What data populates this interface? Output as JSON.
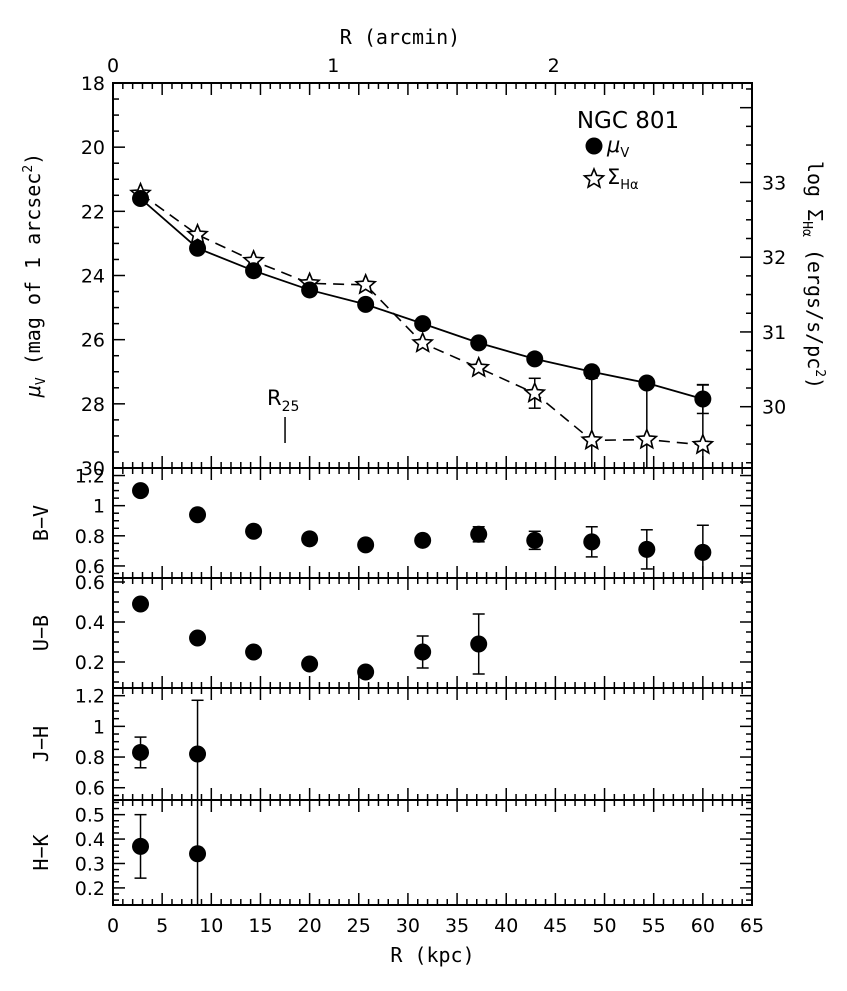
{
  "chart_data": [
    {
      "panel": "mu_v",
      "type": "line",
      "title": "NGC 801",
      "xlabel": "R (kpc)",
      "ylabel": "μ_V (mag of 1 arcsec²)",
      "top_xlabel": "R (arcmin)",
      "top_xlim": [
        0,
        2.9
      ],
      "top_xticks": [
        "0",
        "1",
        "2"
      ],
      "right_ylabel": "log Σ_Hα (ergs/s/pc²)",
      "xlim": [
        0,
        65
      ],
      "ylim": [
        30,
        18
      ],
      "yticks": [
        "18",
        "20",
        "22",
        "24",
        "26",
        "28",
        "30"
      ],
      "right_ylim": [
        29.18,
        34.33
      ],
      "right_yticks": [
        "30",
        "31",
        "32",
        "33"
      ],
      "legend": [
        "μ_V",
        "Σ_Hα"
      ],
      "annotation": "R_25",
      "annotation_x": 17.5,
      "series": [
        {
          "name": "μ_V",
          "marker": "filled-circle",
          "line": "solid",
          "x": [
            2.8,
            8.6,
            14.3,
            20.0,
            25.7,
            31.5,
            37.2,
            42.9,
            48.7,
            54.3,
            60.0
          ],
          "y": [
            21.6,
            23.15,
            23.85,
            24.45,
            24.9,
            25.5,
            26.1,
            26.6,
            27.0,
            27.35,
            27.85
          ],
          "err": [
            0,
            0,
            0,
            0,
            0,
            0,
            0,
            0,
            0,
            0,
            0.45
          ]
        },
        {
          "name": "Σ_Hα",
          "marker": "open-star",
          "line": "dashed",
          "axis": "right",
          "x": [
            2.8,
            8.6,
            14.3,
            20.0,
            25.7,
            31.5,
            37.2,
            42.9,
            48.7,
            54.3,
            60.0
          ],
          "y": [
            32.85,
            32.3,
            31.95,
            31.65,
            31.63,
            30.85,
            30.52,
            30.18,
            29.55,
            29.56,
            29.49
          ],
          "err": [
            0,
            0,
            0,
            0,
            0,
            0,
            0,
            0.2,
            0.83,
            0.83,
            0.8
          ]
        }
      ]
    },
    {
      "panel": "B-V",
      "type": "scatter",
      "ylabel": "B−V",
      "xlim": [
        0,
        65
      ],
      "ylim": [
        0.52,
        1.25
      ],
      "yticks": [
        "0.6",
        "0.8",
        "1",
        "1.2"
      ],
      "x": [
        2.8,
        8.6,
        14.3,
        20.0,
        25.7,
        31.5,
        37.2,
        42.9,
        48.7,
        54.3,
        60.0
      ],
      "y": [
        1.1,
        0.94,
        0.83,
        0.78,
        0.74,
        0.77,
        0.81,
        0.77,
        0.76,
        0.71,
        0.69
      ],
      "err": [
        0,
        0,
        0,
        0,
        0,
        0.02,
        0.05,
        0.06,
        0.1,
        0.13,
        0.18
      ]
    },
    {
      "panel": "U-B",
      "type": "scatter",
      "ylabel": "U−B",
      "xlim": [
        0,
        65
      ],
      "ylim": [
        0.07,
        0.62
      ],
      "yticks": [
        "0.2",
        "0.4",
        "0.6"
      ],
      "x": [
        2.8,
        8.6,
        14.3,
        20.0,
        25.7,
        31.5,
        37.2
      ],
      "y": [
        0.49,
        0.32,
        0.25,
        0.19,
        0.15,
        0.25,
        0.29
      ],
      "err": [
        0,
        0,
        0,
        0,
        0,
        0.08,
        0.15
      ]
    },
    {
      "panel": "J-H",
      "type": "scatter",
      "ylabel": "J−H",
      "xlim": [
        0,
        65
      ],
      "ylim": [
        0.52,
        1.25
      ],
      "yticks": [
        "0.6",
        "0.8",
        "1",
        "1.2"
      ],
      "x": [
        2.8,
        8.6
      ],
      "y": [
        0.83,
        0.82
      ],
      "err": [
        0.1,
        0.35
      ]
    },
    {
      "panel": "H-K",
      "type": "scatter",
      "ylabel": "H−K",
      "xlim": [
        0,
        65
      ],
      "xticks": [
        "0",
        "5",
        "10",
        "15",
        "20",
        "25",
        "30",
        "35",
        "40",
        "45",
        "50",
        "55",
        "60",
        "65"
      ],
      "ylim": [
        0.13,
        0.56
      ],
      "yticks": [
        "0.2",
        "0.3",
        "0.4",
        "0.5"
      ],
      "x": [
        2.8,
        8.6
      ],
      "y": [
        0.37,
        0.34
      ],
      "err": [
        0.13,
        0.22
      ]
    }
  ]
}
